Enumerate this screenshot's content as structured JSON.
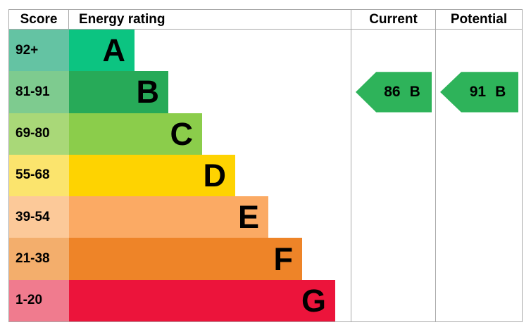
{
  "chart_data": {
    "type": "bar",
    "subtype": "epc-energy-rating",
    "columns": {
      "score": "Score",
      "rating": "Energy rating",
      "current": "Current",
      "potential": "Potential"
    },
    "bands": [
      {
        "score_label": "92+",
        "letter": "A",
        "bar_width_pct": 23.25,
        "band_color": "#0cc481",
        "score_bg": "#64c3a3"
      },
      {
        "score_label": "81-91",
        "letter": "B",
        "bar_width_pct": 35.25,
        "band_color": "#27aa58",
        "score_bg": "#7ecb8f"
      },
      {
        "score_label": "69-80",
        "letter": "C",
        "bar_width_pct": 47.25,
        "band_color": "#8bcd4b",
        "score_bg": "#a9d878"
      },
      {
        "score_label": "55-68",
        "letter": "D",
        "bar_width_pct": 59.0,
        "band_color": "#fed301",
        "score_bg": "#fbe46d"
      },
      {
        "score_label": "39-54",
        "letter": "E",
        "bar_width_pct": 70.75,
        "band_color": "#fbaa64",
        "score_bg": "#fcc999"
      },
      {
        "score_label": "21-38",
        "letter": "F",
        "bar_width_pct": 82.75,
        "band_color": "#ee8428",
        "score_bg": "#f3ae6c"
      },
      {
        "score_label": "1-20",
        "letter": "G",
        "bar_width_pct": 94.5,
        "band_color": "#ec143b",
        "score_bg": "#f07b8e"
      }
    ],
    "current": {
      "value": "86",
      "letter": "B",
      "band_index": 1,
      "arrow_color": "#2eb35a"
    },
    "potential": {
      "value": "91",
      "letter": "B",
      "band_index": 1,
      "arrow_color": "#2eb35a"
    },
    "border_color": "#a9a9a9"
  }
}
